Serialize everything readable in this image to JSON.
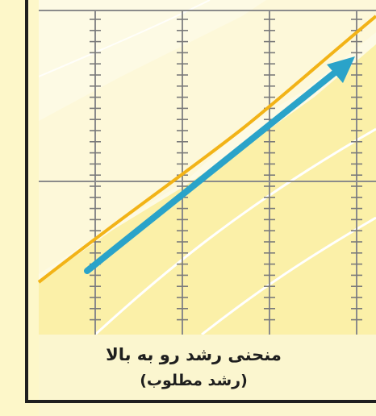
{
  "caption": {
    "line1": "منحنی رشد رو به بالا",
    "line2": "(رشد مطلوب)"
  },
  "colors": {
    "paper": "#fbf6cf",
    "yellow_band": "#fbf0a8",
    "grid": "#8b8b8b",
    "orange_curve": "#f2b317",
    "white_lines": "#ffffff",
    "arrow": "#2aa3c9",
    "axes": "#1f1f1f"
  },
  "icons": {
    "arrow": "arrow-up-right-icon"
  }
}
